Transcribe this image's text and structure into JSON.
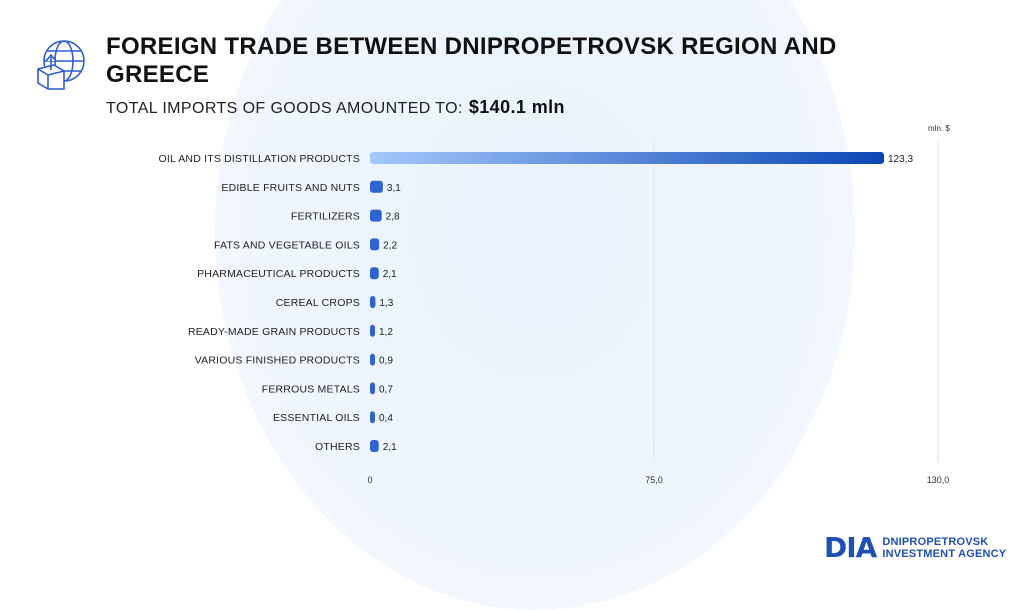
{
  "header": {
    "title": "FOREIGN TRADE BETWEEN DNIPROPETROVSK REGION AND GREECE",
    "subtitle_label": "TOTAL IMPORTS OF GOODS AMOUNTED TO:",
    "subtitle_value": "$140.1 mln",
    "icon": "globe-import-icon"
  },
  "logo": {
    "mark": "DIA",
    "line1": "DNIPROPETROVSK",
    "line2": "INVESTMENT AGENCY"
  },
  "colors": {
    "bar_start": "#a4c8fb",
    "bar_end": "#0a46b4",
    "small_bar": "#2f63d0",
    "logo": "#1e4fb5"
  },
  "chart_data": {
    "type": "bar",
    "orientation": "horizontal",
    "unit_label": "mln. $",
    "categories": [
      "OIL AND ITS DISTILLATION PRODUCTS",
      "EDIBLE FRUITS AND NUTS",
      "FERTILIZERS",
      "FATS AND VEGETABLE OILS",
      "PHARMACEUTICAL PRODUCTS",
      "CEREAL CROPS",
      "READY-MADE GRAIN PRODUCTS",
      "VARIOUS FINISHED PRODUCTS",
      "FERROUS METALS",
      "ESSENTIAL OILS",
      "OTHERS"
    ],
    "values": [
      123.3,
      3.1,
      2.8,
      2.2,
      2.1,
      1.3,
      1.2,
      0.9,
      0.7,
      0.4,
      2.1
    ],
    "value_labels": [
      "123,3",
      "3,1",
      "2,8",
      "2,2",
      "2,1",
      "1,3",
      "1,2",
      "0,9",
      "0,7",
      "0,4",
      "2,1"
    ],
    "xlim": [
      0,
      130
    ],
    "ticks": [
      "0",
      "75,0",
      "130,0"
    ],
    "grid": true
  }
}
